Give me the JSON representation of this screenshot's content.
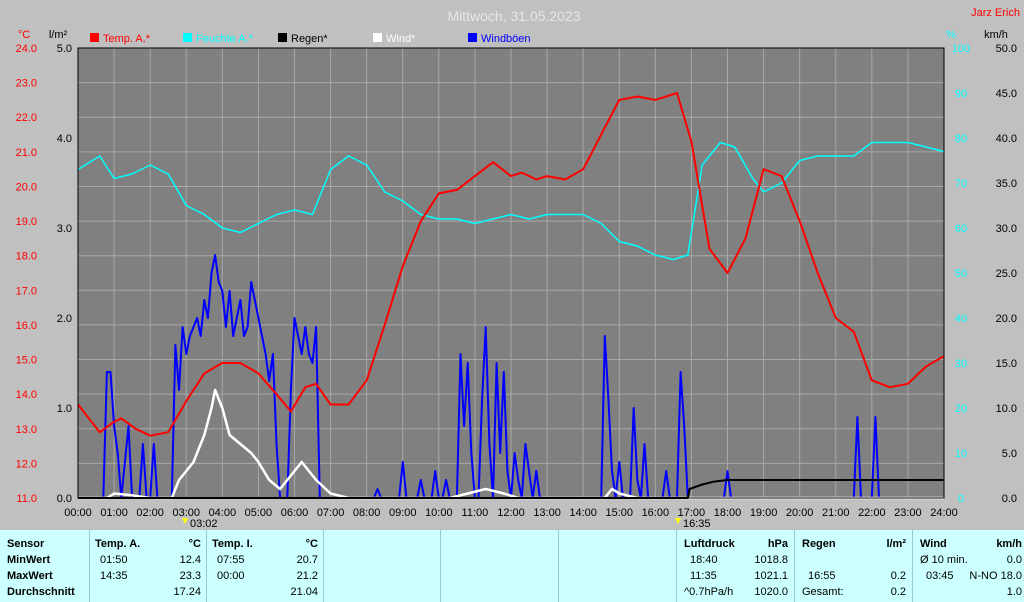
{
  "header": {
    "title": "Mittwoch, 31.05.2023",
    "station": "Jarz Erich"
  },
  "units": {
    "left1": "°C",
    "left2": "l/m²",
    "right1": "%",
    "right2": "km/h"
  },
  "legend": [
    {
      "label": "Temp. A.*",
      "color": "#ff0000"
    },
    {
      "label": "Feuchte A.*",
      "color": "#00ffff"
    },
    {
      "label": "Regen*",
      "color": "#000000"
    },
    {
      "label": "Wind*",
      "color": "#ffffff"
    },
    {
      "label": "Windböen",
      "color": "#0000ff"
    }
  ],
  "markers": {
    "left": "03:02",
    "right": "16:35"
  },
  "chart_data": {
    "type": "line",
    "title": "Mittwoch, 31.05.2023",
    "x_labels": [
      "00:00",
      "01:00",
      "02:00",
      "03:00",
      "04:00",
      "05:00",
      "06:00",
      "07:00",
      "08:00",
      "09:00",
      "10:00",
      "11:00",
      "12:00",
      "13:00",
      "14:00",
      "15:00",
      "16:00",
      "17:00",
      "18:00",
      "19:00",
      "20:00",
      "21:00",
      "22:00",
      "23:00",
      "24:00"
    ],
    "axes": {
      "temp_c": {
        "range": [
          11,
          24
        ],
        "ticks": [
          "11.0",
          "12.0",
          "13.0",
          "14.0",
          "15.0",
          "16.0",
          "17.0",
          "18.0",
          "19.0",
          "20.0",
          "21.0",
          "22.0",
          "23.0",
          "24.0"
        ]
      },
      "rain_lm2": {
        "range": [
          0,
          5
        ],
        "ticks": [
          "0.0",
          "1.0",
          "2.0",
          "3.0",
          "4.0",
          "5.0"
        ]
      },
      "humidity_pct": {
        "range": [
          0,
          100
        ],
        "ticks": [
          "0",
          "10",
          "20",
          "30",
          "40",
          "50",
          "60",
          "70",
          "80",
          "90",
          "100"
        ]
      },
      "wind_kmh": {
        "range": [
          0,
          50
        ],
        "ticks": [
          "0.0",
          "5.0",
          "10.0",
          "15.0",
          "20.0",
          "25.0",
          "30.0",
          "35.0",
          "40.0",
          "45.0",
          "50.0"
        ]
      }
    },
    "grid": true,
    "series": [
      {
        "name": "Temp. A.*",
        "axis": "temp_c",
        "color": "#ff0000",
        "points": [
          [
            0,
            13.7
          ],
          [
            0.6,
            12.9
          ],
          [
            1,
            13.2
          ],
          [
            1.2,
            13.3
          ],
          [
            1.6,
            13.0
          ],
          [
            2,
            12.8
          ],
          [
            2.5,
            12.9
          ],
          [
            3,
            13.8
          ],
          [
            3.5,
            14.6
          ],
          [
            4,
            14.9
          ],
          [
            4.5,
            14.9
          ],
          [
            5,
            14.6
          ],
          [
            5.5,
            14.0
          ],
          [
            5.9,
            13.5
          ],
          [
            6.3,
            14.2
          ],
          [
            6.6,
            14.3
          ],
          [
            7,
            13.7
          ],
          [
            7.5,
            13.7
          ],
          [
            8,
            14.4
          ],
          [
            8.5,
            16.0
          ],
          [
            9,
            17.7
          ],
          [
            9.5,
            19.0
          ],
          [
            10,
            19.8
          ],
          [
            10.5,
            19.9
          ],
          [
            11,
            20.3
          ],
          [
            11.5,
            20.7
          ],
          [
            12,
            20.3
          ],
          [
            12.3,
            20.4
          ],
          [
            12.7,
            20.2
          ],
          [
            13,
            20.3
          ],
          [
            13.5,
            20.2
          ],
          [
            14,
            20.5
          ],
          [
            14.5,
            21.5
          ],
          [
            15,
            22.5
          ],
          [
            15.5,
            22.6
          ],
          [
            16,
            22.5
          ],
          [
            16.3,
            22.6
          ],
          [
            16.6,
            22.7
          ],
          [
            17,
            21.3
          ],
          [
            17.5,
            18.2
          ],
          [
            18,
            17.5
          ],
          [
            18.5,
            18.5
          ],
          [
            19,
            20.5
          ],
          [
            19.5,
            20.3
          ],
          [
            20,
            19.0
          ],
          [
            20.5,
            17.5
          ],
          [
            21,
            16.2
          ],
          [
            21.5,
            15.8
          ],
          [
            22,
            14.4
          ],
          [
            22.5,
            14.2
          ],
          [
            23,
            14.3
          ],
          [
            23.5,
            14.8
          ],
          [
            24,
            15.1
          ]
        ]
      },
      {
        "name": "Feuchte A.*",
        "axis": "humidity_pct",
        "color": "#00ffff",
        "points": [
          [
            0,
            73
          ],
          [
            0.6,
            76
          ],
          [
            1,
            71
          ],
          [
            1.5,
            72
          ],
          [
            2,
            74
          ],
          [
            2.5,
            72
          ],
          [
            3,
            65
          ],
          [
            3.5,
            63
          ],
          [
            4,
            60
          ],
          [
            4.5,
            59
          ],
          [
            5,
            61
          ],
          [
            5.5,
            63
          ],
          [
            6,
            64
          ],
          [
            6.5,
            63
          ],
          [
            7,
            73
          ],
          [
            7.5,
            76
          ],
          [
            8,
            74
          ],
          [
            8.5,
            68
          ],
          [
            9,
            66
          ],
          [
            9.5,
            63
          ],
          [
            10,
            62
          ],
          [
            10.5,
            62
          ],
          [
            11,
            61
          ],
          [
            11.5,
            62
          ],
          [
            12,
            63
          ],
          [
            12.5,
            62
          ],
          [
            13,
            63
          ],
          [
            13.5,
            63
          ],
          [
            14,
            63
          ],
          [
            14.5,
            61
          ],
          [
            15,
            57
          ],
          [
            15.5,
            56
          ],
          [
            16,
            54
          ],
          [
            16.5,
            53
          ],
          [
            16.9,
            54
          ],
          [
            17.3,
            74
          ],
          [
            17.8,
            79
          ],
          [
            18.2,
            78
          ],
          [
            18.7,
            71
          ],
          [
            19,
            68
          ],
          [
            19.5,
            70
          ],
          [
            20,
            75
          ],
          [
            20.5,
            76
          ],
          [
            21,
            76
          ],
          [
            21.5,
            76
          ],
          [
            22,
            79
          ],
          [
            22.5,
            79
          ],
          [
            23,
            79
          ],
          [
            23.5,
            78
          ],
          [
            24,
            77
          ]
        ]
      },
      {
        "name": "Regen*",
        "axis": "rain_lm2",
        "color": "#000000",
        "points": [
          [
            0,
            0
          ],
          [
            16.9,
            0
          ],
          [
            16.95,
            0.1
          ],
          [
            17.3,
            0.15
          ],
          [
            17.6,
            0.18
          ],
          [
            18,
            0.2
          ],
          [
            24,
            0.2
          ]
        ]
      },
      {
        "name": "Wind*",
        "axis": "wind_kmh",
        "color": "#ffffff",
        "points": [
          [
            0,
            0
          ],
          [
            0.8,
            0
          ],
          [
            1,
            0.5
          ],
          [
            1.5,
            0.3
          ],
          [
            2,
            0
          ],
          [
            2.6,
            0
          ],
          [
            2.8,
            2
          ],
          [
            3,
            3
          ],
          [
            3.2,
            4
          ],
          [
            3.5,
            7
          ],
          [
            3.7,
            10
          ],
          [
            3.8,
            12
          ],
          [
            4,
            10
          ],
          [
            4.2,
            7
          ],
          [
            4.5,
            6
          ],
          [
            4.8,
            5
          ],
          [
            5,
            4
          ],
          [
            5.3,
            2
          ],
          [
            5.6,
            1
          ],
          [
            6,
            3
          ],
          [
            6.2,
            4
          ],
          [
            6.6,
            2
          ],
          [
            7,
            0.5
          ],
          [
            7.5,
            0
          ],
          [
            10.3,
            0
          ],
          [
            10.8,
            0.5
          ],
          [
            11.3,
            1
          ],
          [
            11.8,
            0.5
          ],
          [
            12.2,
            0
          ],
          [
            14.6,
            0
          ],
          [
            14.8,
            1
          ],
          [
            15,
            0.5
          ],
          [
            15.5,
            0
          ],
          [
            24,
            0
          ]
        ]
      },
      {
        "name": "Windböen",
        "axis": "wind_kmh",
        "color": "#0000ff",
        "points": [
          [
            0,
            0
          ],
          [
            0.7,
            0
          ],
          [
            0.8,
            14
          ],
          [
            0.9,
            14
          ],
          [
            1,
            8
          ],
          [
            1.1,
            5
          ],
          [
            1.2,
            0
          ],
          [
            1.4,
            8
          ],
          [
            1.5,
            0
          ],
          [
            1.7,
            0
          ],
          [
            1.8,
            6
          ],
          [
            1.9,
            0
          ],
          [
            2,
            0
          ],
          [
            2.1,
            6
          ],
          [
            2.2,
            0
          ],
          [
            2.6,
            0
          ],
          [
            2.7,
            17
          ],
          [
            2.8,
            12
          ],
          [
            2.9,
            19
          ],
          [
            3,
            16
          ],
          [
            3.1,
            18
          ],
          [
            3.3,
            20
          ],
          [
            3.4,
            18
          ],
          [
            3.5,
            22
          ],
          [
            3.6,
            20
          ],
          [
            3.7,
            25
          ],
          [
            3.8,
            27
          ],
          [
            3.9,
            24
          ],
          [
            4,
            23
          ],
          [
            4.1,
            19
          ],
          [
            4.2,
            23
          ],
          [
            4.3,
            18
          ],
          [
            4.4,
            20
          ],
          [
            4.5,
            22
          ],
          [
            4.6,
            18
          ],
          [
            4.7,
            19
          ],
          [
            4.8,
            24
          ],
          [
            4.9,
            22
          ],
          [
            5,
            20
          ],
          [
            5.1,
            18
          ],
          [
            5.2,
            16
          ],
          [
            5.3,
            13
          ],
          [
            5.4,
            16
          ],
          [
            5.5,
            6
          ],
          [
            5.6,
            0
          ],
          [
            5.8,
            0
          ],
          [
            5.9,
            12
          ],
          [
            6,
            20
          ],
          [
            6.1,
            18
          ],
          [
            6.2,
            16
          ],
          [
            6.3,
            19
          ],
          [
            6.4,
            16
          ],
          [
            6.5,
            15
          ],
          [
            6.6,
            19
          ],
          [
            6.7,
            0
          ],
          [
            8.2,
            0
          ],
          [
            8.3,
            1
          ],
          [
            8.4,
            0
          ],
          [
            8.9,
            0
          ],
          [
            9,
            4
          ],
          [
            9.1,
            0
          ],
          [
            9.4,
            0
          ],
          [
            9.5,
            2
          ],
          [
            9.6,
            0
          ],
          [
            9.8,
            0
          ],
          [
            9.9,
            3
          ],
          [
            10,
            0
          ],
          [
            10.1,
            0
          ],
          [
            10.2,
            2
          ],
          [
            10.3,
            0
          ],
          [
            10.5,
            0
          ],
          [
            10.6,
            16
          ],
          [
            10.7,
            8
          ],
          [
            10.8,
            15
          ],
          [
            10.9,
            5
          ],
          [
            11,
            0
          ],
          [
            11.1,
            0
          ],
          [
            11.2,
            11
          ],
          [
            11.3,
            19
          ],
          [
            11.4,
            6
          ],
          [
            11.5,
            0
          ],
          [
            11.6,
            15
          ],
          [
            11.7,
            5
          ],
          [
            11.8,
            14
          ],
          [
            11.9,
            3
          ],
          [
            12,
            0
          ],
          [
            12.1,
            5
          ],
          [
            12.2,
            2
          ],
          [
            12.3,
            0
          ],
          [
            12.4,
            6
          ],
          [
            12.5,
            3
          ],
          [
            12.6,
            0
          ],
          [
            12.7,
            3
          ],
          [
            12.8,
            0
          ],
          [
            14.5,
            0
          ],
          [
            14.6,
            18
          ],
          [
            14.7,
            11
          ],
          [
            14.8,
            3
          ],
          [
            14.9,
            0
          ],
          [
            15,
            4
          ],
          [
            15.1,
            0
          ],
          [
            15.3,
            0
          ],
          [
            15.4,
            10
          ],
          [
            15.5,
            2
          ],
          [
            15.6,
            0
          ],
          [
            15.7,
            6
          ],
          [
            15.8,
            0
          ],
          [
            16.2,
            0
          ],
          [
            16.3,
            3
          ],
          [
            16.4,
            0
          ],
          [
            16.6,
            0
          ],
          [
            16.7,
            14
          ],
          [
            16.8,
            8
          ],
          [
            16.9,
            0
          ],
          [
            17.9,
            0
          ],
          [
            18,
            3
          ],
          [
            18.1,
            0
          ],
          [
            21.5,
            0
          ],
          [
            21.6,
            9
          ],
          [
            21.7,
            0
          ],
          [
            22,
            0
          ],
          [
            22.1,
            9
          ],
          [
            22.2,
            0
          ],
          [
            24,
            0
          ]
        ]
      }
    ]
  },
  "stats": {
    "sensor": {
      "header": "Sensor",
      "rows": [
        "MinWert",
        "MaxWert",
        "Durchschnitt"
      ]
    },
    "temp_a": {
      "header": "Temp. A.",
      "unit": "°C",
      "min_time": "01:50",
      "min": "12.4",
      "max_time": "14:35",
      "max": "23.3",
      "avg": "17.24"
    },
    "temp_i": {
      "header": "Temp. I.",
      "unit": "°C",
      "min_time": "07:55",
      "min": "20.7",
      "max_time": "00:00",
      "max": "21.2",
      "avg": "21.04"
    },
    "pressure": {
      "header": "Luftdruck",
      "unit": "hPa",
      "min_time": "18:40",
      "min": "1018.8",
      "max_time": "11:35",
      "max": "1021.1",
      "avg_label": "^0.7hPa/h",
      "avg": "1020.0"
    },
    "rain": {
      "header": "Regen",
      "unit": "l/m²",
      "max_time": "16:55",
      "max": "0.2",
      "total_label": "Gesamt:",
      "total": "0.2"
    },
    "wind": {
      "header": "Wind",
      "unit": "km/h",
      "avg_label": "Ø 10 min.",
      "avg": "0.0",
      "max_time": "03:45",
      "max": "N-NO 18.0",
      "day_avg": "1.0"
    }
  }
}
